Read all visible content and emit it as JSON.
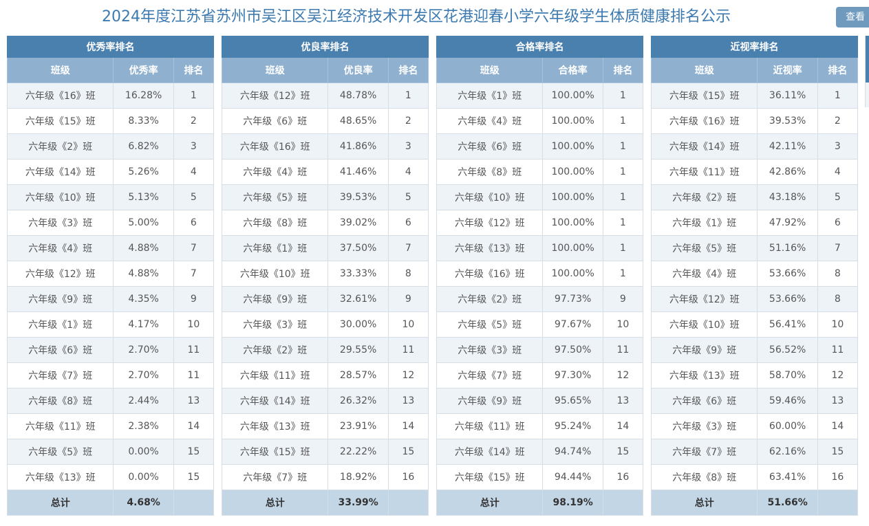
{
  "header": {
    "title": "2024年度江苏省苏州市吴江区吴江经济技术开发区花港迎春小学六年级学生体质健康排名公示",
    "view_button": "查看"
  },
  "panels": [
    {
      "title": "优秀率排名",
      "columns": [
        "班级",
        "优秀率",
        "排名"
      ],
      "rows": [
        [
          "六年级《16》班",
          "16.28%",
          "1"
        ],
        [
          "六年级《15》班",
          "8.33%",
          "2"
        ],
        [
          "六年级《2》班",
          "6.82%",
          "3"
        ],
        [
          "六年级《14》班",
          "5.26%",
          "4"
        ],
        [
          "六年级《10》班",
          "5.13%",
          "5"
        ],
        [
          "六年级《3》班",
          "5.00%",
          "6"
        ],
        [
          "六年级《4》班",
          "4.88%",
          "7"
        ],
        [
          "六年级《12》班",
          "4.88%",
          "7"
        ],
        [
          "六年级《9》班",
          "4.35%",
          "9"
        ],
        [
          "六年级《1》班",
          "4.17%",
          "10"
        ],
        [
          "六年级《6》班",
          "2.70%",
          "11"
        ],
        [
          "六年级《7》班",
          "2.70%",
          "11"
        ],
        [
          "六年级《8》班",
          "2.44%",
          "13"
        ],
        [
          "六年级《11》班",
          "2.38%",
          "14"
        ],
        [
          "六年级《5》班",
          "0.00%",
          "15"
        ],
        [
          "六年级《13》班",
          "0.00%",
          "15"
        ]
      ],
      "total_label": "总计",
      "total_value": "4.68%"
    },
    {
      "title": "优良率排名",
      "columns": [
        "班级",
        "优良率",
        "排名"
      ],
      "rows": [
        [
          "六年级《12》班",
          "48.78%",
          "1"
        ],
        [
          "六年级《6》班",
          "48.65%",
          "2"
        ],
        [
          "六年级《16》班",
          "41.86%",
          "3"
        ],
        [
          "六年级《4》班",
          "41.46%",
          "4"
        ],
        [
          "六年级《5》班",
          "39.53%",
          "5"
        ],
        [
          "六年级《8》班",
          "39.02%",
          "6"
        ],
        [
          "六年级《1》班",
          "37.50%",
          "7"
        ],
        [
          "六年级《10》班",
          "33.33%",
          "8"
        ],
        [
          "六年级《9》班",
          "32.61%",
          "9"
        ],
        [
          "六年级《3》班",
          "30.00%",
          "10"
        ],
        [
          "六年级《2》班",
          "29.55%",
          "11"
        ],
        [
          "六年级《11》班",
          "28.57%",
          "12"
        ],
        [
          "六年级《14》班",
          "26.32%",
          "13"
        ],
        [
          "六年级《13》班",
          "23.91%",
          "14"
        ],
        [
          "六年级《15》班",
          "22.22%",
          "15"
        ],
        [
          "六年级《7》班",
          "18.92%",
          "16"
        ]
      ],
      "total_label": "总计",
      "total_value": "33.99%"
    },
    {
      "title": "合格率排名",
      "columns": [
        "班级",
        "合格率",
        "排名"
      ],
      "rows": [
        [
          "六年级《1》班",
          "100.00%",
          "1"
        ],
        [
          "六年级《4》班",
          "100.00%",
          "1"
        ],
        [
          "六年级《6》班",
          "100.00%",
          "1"
        ],
        [
          "六年级《8》班",
          "100.00%",
          "1"
        ],
        [
          "六年级《10》班",
          "100.00%",
          "1"
        ],
        [
          "六年级《12》班",
          "100.00%",
          "1"
        ],
        [
          "六年级《13》班",
          "100.00%",
          "1"
        ],
        [
          "六年级《16》班",
          "100.00%",
          "1"
        ],
        [
          "六年级《2》班",
          "97.73%",
          "9"
        ],
        [
          "六年级《5》班",
          "97.67%",
          "10"
        ],
        [
          "六年级《3》班",
          "97.50%",
          "11"
        ],
        [
          "六年级《7》班",
          "97.30%",
          "12"
        ],
        [
          "六年级《9》班",
          "95.65%",
          "13"
        ],
        [
          "六年级《11》班",
          "95.24%",
          "14"
        ],
        [
          "六年级《14》班",
          "94.74%",
          "15"
        ],
        [
          "六年级《15》班",
          "94.44%",
          "16"
        ]
      ],
      "total_label": "总计",
      "total_value": "98.19%"
    },
    {
      "title": "近视率排名",
      "columns": [
        "班级",
        "近视率",
        "排名"
      ],
      "rows": [
        [
          "六年级《15》班",
          "36.11%",
          "1"
        ],
        [
          "六年级《16》班",
          "39.53%",
          "2"
        ],
        [
          "六年级《14》班",
          "42.11%",
          "3"
        ],
        [
          "六年级《11》班",
          "42.86%",
          "4"
        ],
        [
          "六年级《2》班",
          "43.18%",
          "5"
        ],
        [
          "六年级《1》班",
          "47.92%",
          "6"
        ],
        [
          "六年级《5》班",
          "51.16%",
          "7"
        ],
        [
          "六年级《4》班",
          "53.66%",
          "8"
        ],
        [
          "六年级《12》班",
          "53.66%",
          "8"
        ],
        [
          "六年级《10》班",
          "56.41%",
          "10"
        ],
        [
          "六年级《9》班",
          "56.52%",
          "11"
        ],
        [
          "六年级《13》班",
          "58.70%",
          "12"
        ],
        [
          "六年级《6》班",
          "59.46%",
          "13"
        ],
        [
          "六年级《3》班",
          "60.00%",
          "14"
        ],
        [
          "六年级《7》班",
          "62.16%",
          "15"
        ],
        [
          "六年级《8》班",
          "63.41%",
          "16"
        ]
      ],
      "total_label": "总计",
      "total_value": "51.66%"
    }
  ]
}
